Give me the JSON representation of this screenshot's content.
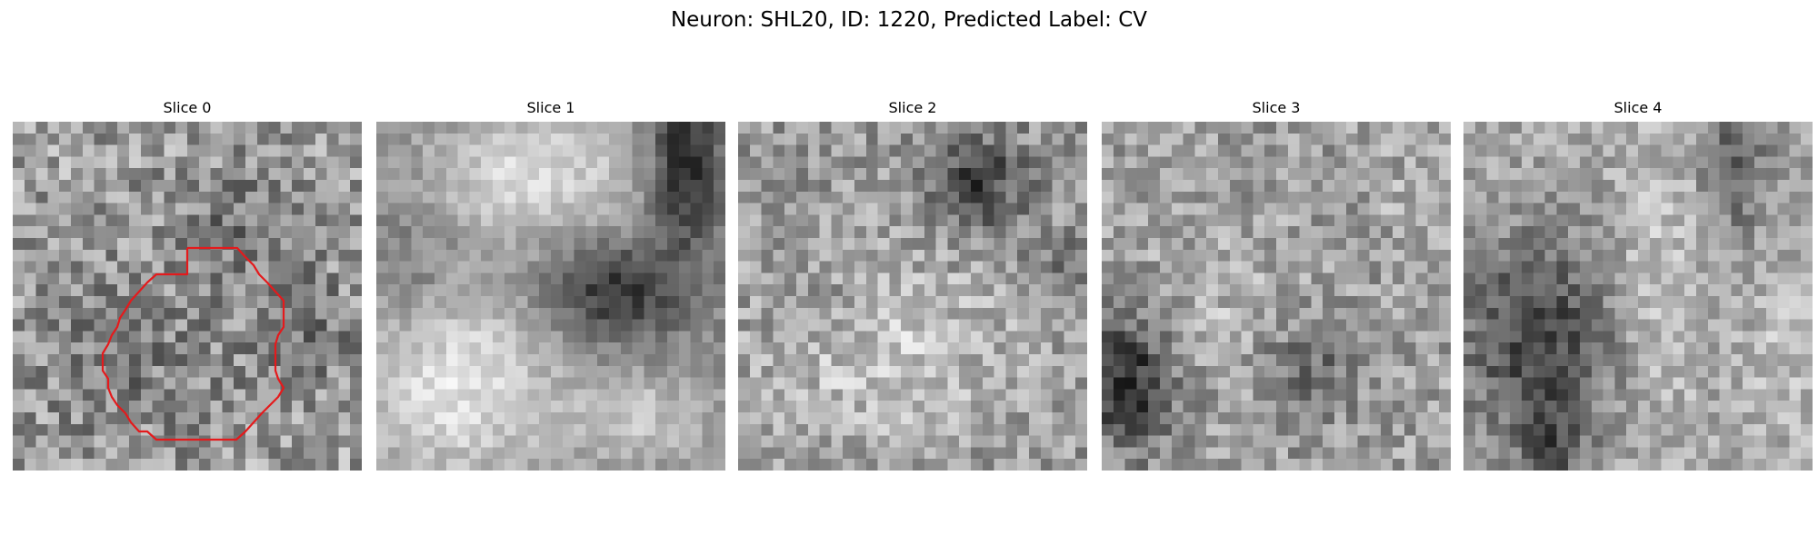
{
  "figure": {
    "title": "Neuron: SHL20, ID: 1220, Predicted Label: CV"
  },
  "colors": {
    "contour": "#e41a1c",
    "background": "#ffffff"
  },
  "panels": [
    {
      "title": "Slice 0",
      "has_contour": true
    },
    {
      "title": "Slice 1",
      "has_contour": false
    },
    {
      "title": "Slice 2",
      "has_contour": false
    },
    {
      "title": "Slice 3",
      "has_contour": false
    },
    {
      "title": "Slice 4",
      "has_contour": false
    }
  ]
}
